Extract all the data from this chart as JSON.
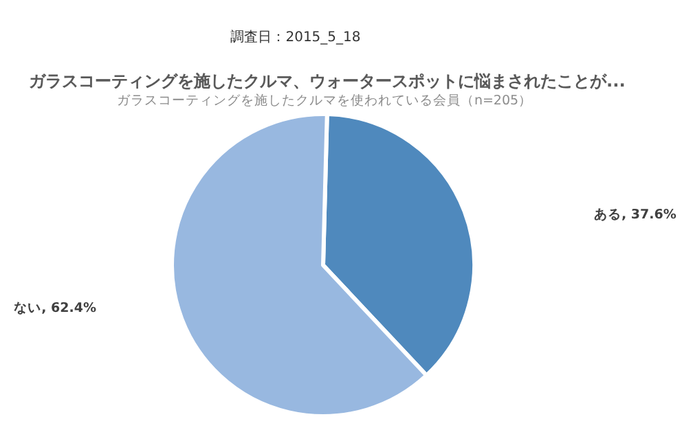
{
  "chart_data": {
    "type": "pie",
    "title": "ガラスコーティングを施したクルマ、ウォータースポットに悩まされたことが...",
    "subtitle": "ガラスコーティングを施したクルマを使われている会員（n=205）",
    "annotations": [
      "調査日：2015_5_18"
    ],
    "categories": [
      "ある",
      "ない"
    ],
    "values": [
      37.6,
      62.4
    ],
    "colors": [
      "#4f89bd",
      "#98b8e0"
    ],
    "value_labels": [
      "37.6%",
      "62.4%"
    ],
    "legend": false
  }
}
